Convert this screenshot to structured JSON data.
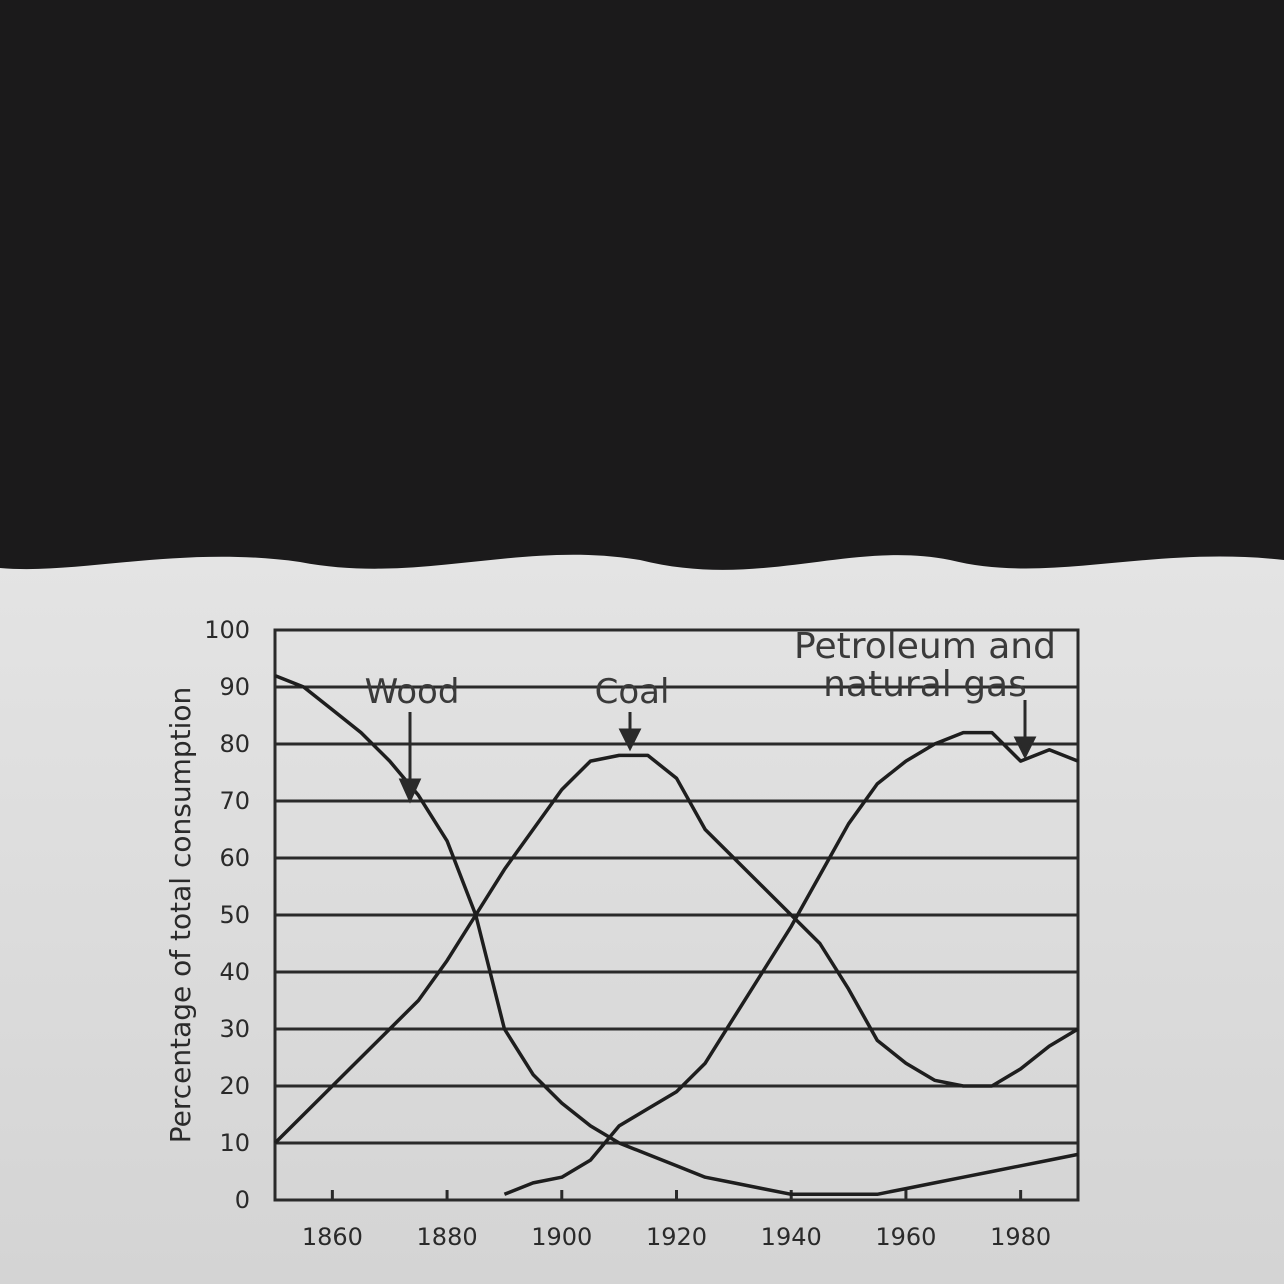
{
  "chart_data": {
    "type": "line",
    "ylabel": "Percentage of total consumption",
    "x": [
      1850,
      1855,
      1860,
      1865,
      1870,
      1875,
      1880,
      1885,
      1890,
      1895,
      1900,
      1905,
      1910,
      1915,
      1920,
      1925,
      1930,
      1935,
      1940,
      1945,
      1950,
      1955,
      1960,
      1965,
      1970,
      1975,
      1980,
      1985,
      1990
    ],
    "series": [
      {
        "name": "Wood",
        "color": "#1e1e1e",
        "values": [
          92,
          90,
          86,
          82,
          77,
          71,
          63,
          50,
          30,
          22,
          17,
          13,
          10,
          8,
          6,
          4,
          3,
          2,
          1,
          1,
          1,
          1,
          2,
          3,
          4,
          5,
          6,
          7,
          8
        ]
      },
      {
        "name": "Coal",
        "color": "#1e1e1e",
        "values": [
          10,
          15,
          20,
          25,
          30,
          35,
          42,
          50,
          58,
          65,
          72,
          77,
          78,
          78,
          74,
          65,
          60,
          55,
          50,
          45,
          37,
          28,
          24,
          21,
          20,
          20,
          23,
          27,
          30
        ]
      },
      {
        "name": "Petroleum and natural gas",
        "color": "#1e1e1e",
        "values": [
          null,
          null,
          null,
          null,
          null,
          null,
          null,
          null,
          1,
          3,
          4,
          7,
          13,
          16,
          19,
          24,
          32,
          40,
          48,
          57,
          66,
          73,
          77,
          80,
          82,
          82,
          77,
          79,
          77
        ]
      }
    ],
    "xlim": [
      1850,
      1990
    ],
    "xticks": [
      1860,
      1880,
      1900,
      1920,
      1940,
      1960,
      1980
    ],
    "ylim": [
      0,
      100
    ],
    "yticks": [
      0,
      10,
      20,
      30,
      40,
      50,
      60,
      70,
      80,
      90,
      100
    ],
    "grid": true
  }
}
